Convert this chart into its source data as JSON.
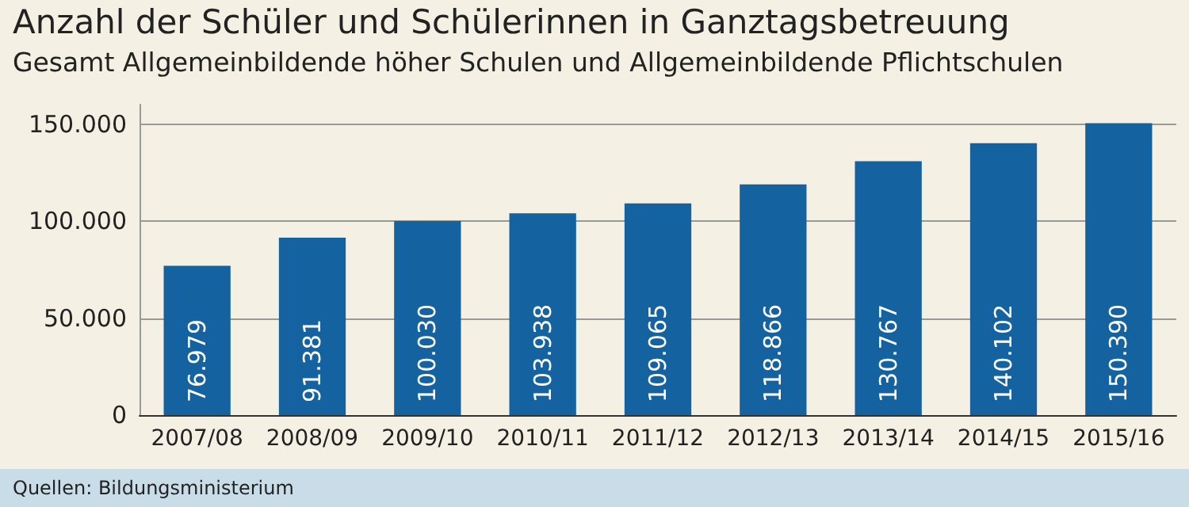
{
  "chart_data": {
    "type": "bar",
    "title": "Anzahl der Schüler und Schülerinnen in Ganztagsbetreuung",
    "subtitle": "Gesamt Allgemeinbildende höher Schulen und Allgemeinbildende Pflichtschulen",
    "categories": [
      "2007/08",
      "2008/09",
      "2009/10",
      "2010/11",
      "2011/12",
      "2012/13",
      "2013/14",
      "2014/15",
      "2015/16"
    ],
    "values": [
      76979,
      91381,
      100030,
      103938,
      109065,
      118866,
      130767,
      140102,
      150390
    ],
    "value_labels": [
      "76.979",
      "91.381",
      "100.030",
      "103.938",
      "109.065",
      "118.866",
      "130.767",
      "140.102",
      "150.390"
    ],
    "color": "#1463a0",
    "ylim": [
      0,
      160000
    ],
    "yticks": [
      {
        "value": 0,
        "label": "0"
      },
      {
        "value": 50000,
        "label": "50.000"
      },
      {
        "value": 100000,
        "label": "100.000"
      },
      {
        "value": 150000,
        "label": "150.000"
      }
    ],
    "grid": "y",
    "annotations": [
      "Quellen: Bildungsministerium"
    ]
  }
}
